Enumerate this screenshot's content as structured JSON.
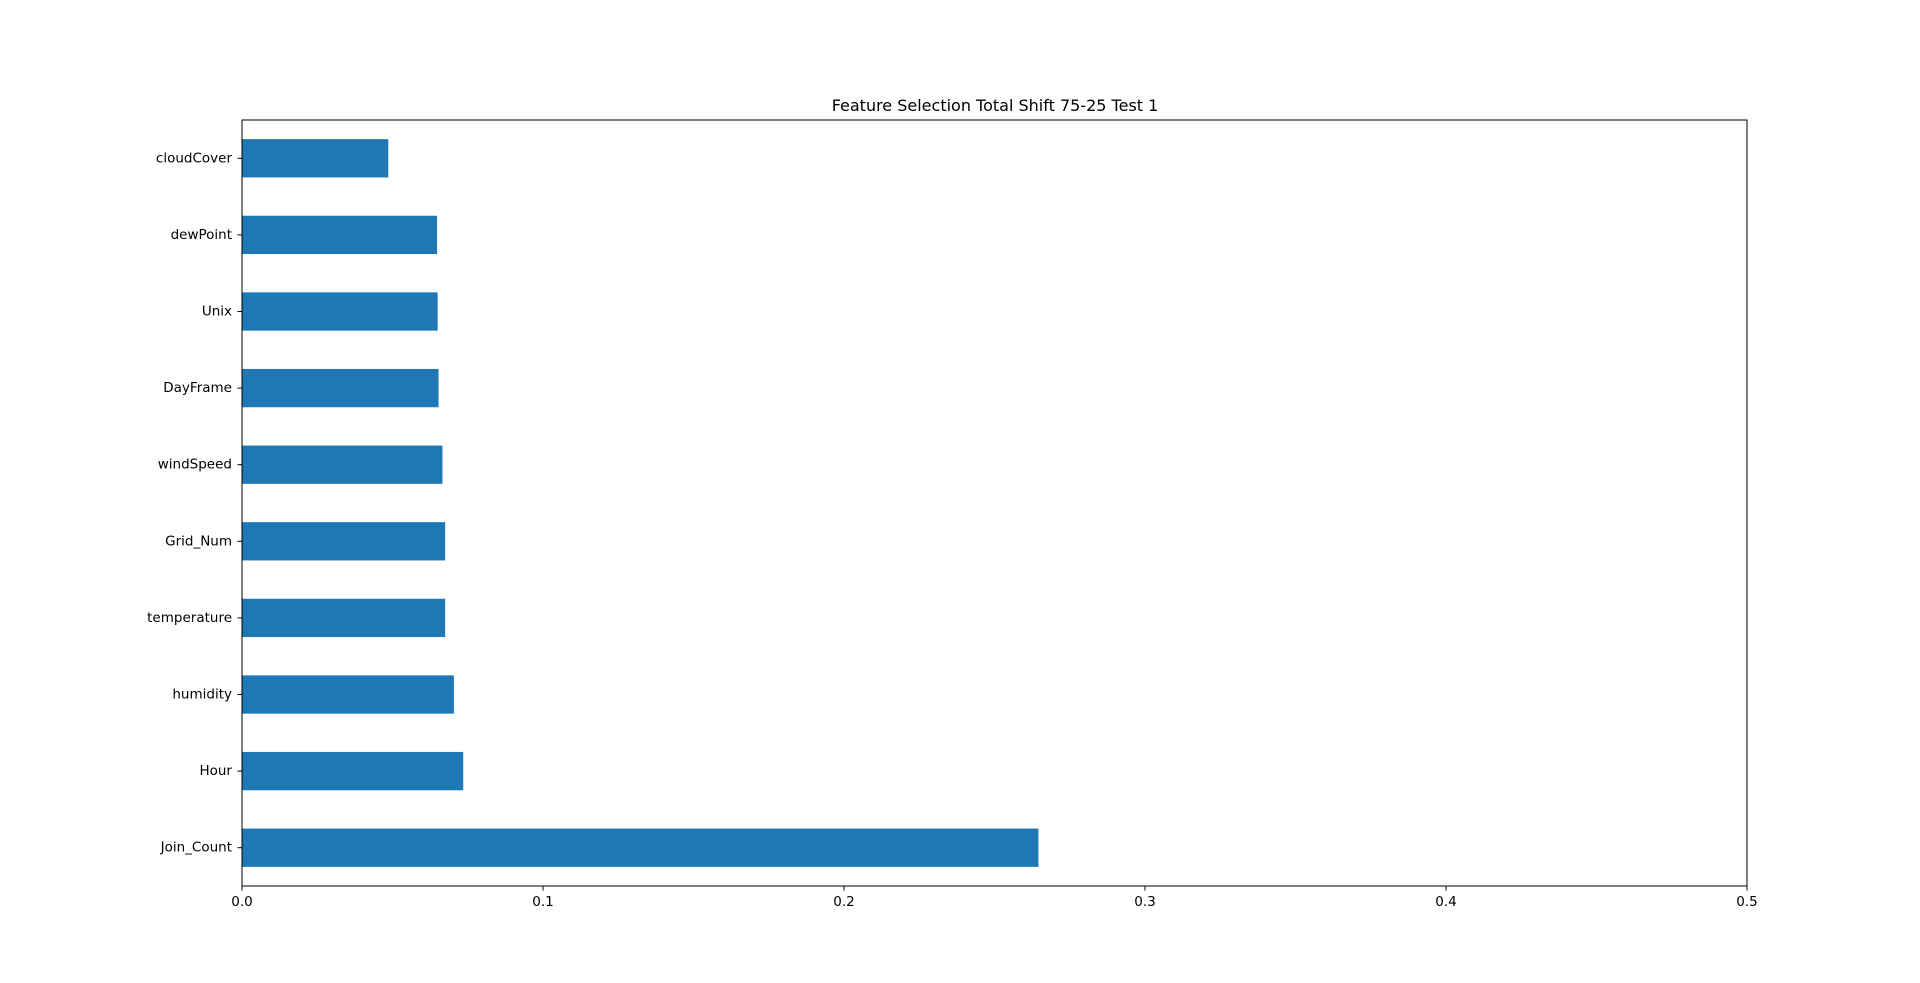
{
  "chart_data": {
    "type": "bar",
    "orientation": "horizontal",
    "title": "Feature Selection Total Shift 75-25 Test  1",
    "xlabel": "",
    "ylabel": "",
    "categories": [
      "cloudCover",
      "dewPoint",
      "Unix",
      "DayFrame",
      "windSpeed",
      "Grid_Num",
      "temperature",
      "humidity",
      "Hour",
      "Join_Count"
    ],
    "values": [
      0.0486,
      0.0648,
      0.065,
      0.0653,
      0.0666,
      0.0675,
      0.0675,
      0.0704,
      0.0735,
      0.2646
    ],
    "xlim": [
      0,
      0.5
    ],
    "xticks": [
      "0.0",
      "0.1",
      "0.2",
      "0.3",
      "0.4",
      "0.5"
    ],
    "grid": false,
    "legend": "none",
    "bar_color": "#1f77b4"
  }
}
